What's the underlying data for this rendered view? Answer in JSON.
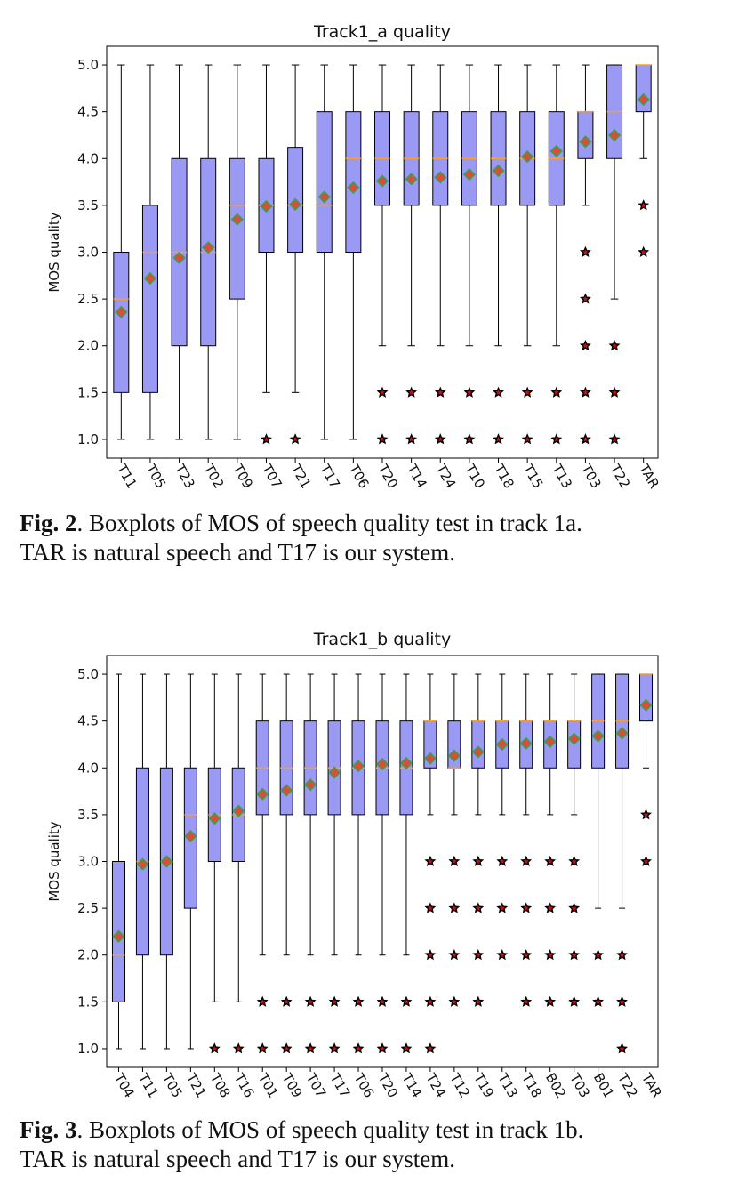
{
  "colors": {
    "box_fill": "#9a9af5",
    "median": "#f5a030",
    "mean_fill": "#e04a3a",
    "mean_edge": "#3aa04a",
    "flier_fill": "#c0101a",
    "flier_edge": "#000000"
  },
  "chart_data": [
    {
      "type": "boxplot",
      "title": "Track1_a quality",
      "xlabel": "",
      "ylabel": "MOS quality",
      "ylim": [
        0.8,
        5.2
      ],
      "yticks": [
        "1.0",
        "1.5",
        "2.0",
        "2.5",
        "3.0",
        "3.5",
        "4.0",
        "4.5",
        "5.0"
      ],
      "categories": [
        "T11",
        "T05",
        "T23",
        "T02",
        "T09",
        "T07",
        "T21",
        "T17",
        "T06",
        "T20",
        "T14",
        "T24",
        "T10",
        "T18",
        "T15",
        "T13",
        "T03",
        "T22",
        "TAR"
      ],
      "boxes": [
        {
          "min": 1.0,
          "q1": 1.5,
          "median": 2.5,
          "q3": 3.0,
          "max": 5.0,
          "mean": 2.36,
          "fliers": []
        },
        {
          "min": 1.0,
          "q1": 1.5,
          "median": 3.0,
          "q3": 3.5,
          "max": 5.0,
          "mean": 2.72,
          "fliers": []
        },
        {
          "min": 1.0,
          "q1": 2.0,
          "median": 3.0,
          "q3": 4.0,
          "max": 5.0,
          "mean": 2.94,
          "fliers": []
        },
        {
          "min": 1.0,
          "q1": 2.0,
          "median": 3.0,
          "q3": 4.0,
          "max": 5.0,
          "mean": 3.05,
          "fliers": []
        },
        {
          "min": 1.0,
          "q1": 2.5,
          "median": 3.5,
          "q3": 4.0,
          "max": 5.0,
          "mean": 3.35,
          "fliers": []
        },
        {
          "min": 1.5,
          "q1": 3.0,
          "median": 3.5,
          "q3": 4.0,
          "max": 5.0,
          "mean": 3.49,
          "fliers": [
            1.0
          ]
        },
        {
          "min": 1.5,
          "q1": 3.0,
          "median": 3.5,
          "q3": 4.12,
          "max": 5.0,
          "mean": 3.51,
          "fliers": [
            1.0
          ]
        },
        {
          "min": 1.0,
          "q1": 3.0,
          "median": 3.5,
          "q3": 4.5,
          "max": 5.0,
          "mean": 3.59,
          "fliers": []
        },
        {
          "min": 1.0,
          "q1": 3.0,
          "median": 4.0,
          "q3": 4.5,
          "max": 5.0,
          "mean": 3.69,
          "fliers": []
        },
        {
          "min": 2.0,
          "q1": 3.5,
          "median": 4.0,
          "q3": 4.5,
          "max": 5.0,
          "mean": 3.76,
          "fliers": [
            1.5,
            1.0
          ]
        },
        {
          "min": 2.0,
          "q1": 3.5,
          "median": 4.0,
          "q3": 4.5,
          "max": 5.0,
          "mean": 3.78,
          "fliers": [
            1.5,
            1.0
          ]
        },
        {
          "min": 2.0,
          "q1": 3.5,
          "median": 4.0,
          "q3": 4.5,
          "max": 5.0,
          "mean": 3.8,
          "fliers": [
            1.5,
            1.0
          ]
        },
        {
          "min": 2.0,
          "q1": 3.5,
          "median": 4.0,
          "q3": 4.5,
          "max": 5.0,
          "mean": 3.83,
          "fliers": [
            1.5,
            1.0
          ]
        },
        {
          "min": 2.0,
          "q1": 3.5,
          "median": 4.0,
          "q3": 4.5,
          "max": 5.0,
          "mean": 3.87,
          "fliers": [
            1.5,
            1.0
          ]
        },
        {
          "min": 2.0,
          "q1": 3.5,
          "median": 4.0,
          "q3": 4.5,
          "max": 5.0,
          "mean": 4.02,
          "fliers": [
            1.5,
            1.0
          ]
        },
        {
          "min": 2.0,
          "q1": 3.5,
          "median": 4.0,
          "q3": 4.5,
          "max": 5.0,
          "mean": 4.08,
          "fliers": [
            1.5,
            1.0
          ]
        },
        {
          "min": 3.5,
          "q1": 4.0,
          "median": 4.5,
          "q3": 4.5,
          "max": 5.0,
          "mean": 4.18,
          "fliers": [
            3.0,
            2.5,
            2.0,
            1.5,
            1.0
          ]
        },
        {
          "min": 2.5,
          "q1": 4.0,
          "median": 4.5,
          "q3": 5.0,
          "max": 5.0,
          "mean": 4.25,
          "fliers": [
            2.0,
            1.5,
            1.0
          ]
        },
        {
          "min": 4.0,
          "q1": 4.5,
          "median": 5.0,
          "q3": 5.0,
          "max": 5.0,
          "mean": 4.63,
          "fliers": [
            3.5,
            3.0
          ]
        }
      ]
    },
    {
      "type": "boxplot",
      "title": "Track1_b quality",
      "xlabel": "",
      "ylabel": "MOS quality",
      "ylim": [
        0.8,
        5.2
      ],
      "yticks": [
        "1.0",
        "1.5",
        "2.0",
        "2.5",
        "3.0",
        "3.5",
        "4.0",
        "4.5",
        "5.0"
      ],
      "categories": [
        "T04",
        "T11",
        "T05",
        "T21",
        "T08",
        "T16",
        "T01",
        "T09",
        "T07",
        "T17",
        "T06",
        "T20",
        "T14",
        "T24",
        "T12",
        "T19",
        "T13",
        "T18",
        "B02",
        "T03",
        "B01",
        "T22",
        "TAR"
      ],
      "boxes": [
        {
          "min": 1.0,
          "q1": 1.5,
          "median": 2.0,
          "q3": 3.0,
          "max": 5.0,
          "mean": 2.2,
          "fliers": []
        },
        {
          "min": 1.0,
          "q1": 2.0,
          "median": 3.0,
          "q3": 4.0,
          "max": 5.0,
          "mean": 2.97,
          "fliers": []
        },
        {
          "min": 1.0,
          "q1": 2.0,
          "median": 3.0,
          "q3": 4.0,
          "max": 5.0,
          "mean": 3.0,
          "fliers": []
        },
        {
          "min": 1.0,
          "q1": 2.5,
          "median": 3.5,
          "q3": 4.0,
          "max": 5.0,
          "mean": 3.27,
          "fliers": []
        },
        {
          "min": 1.5,
          "q1": 3.0,
          "median": 3.5,
          "q3": 4.0,
          "max": 5.0,
          "mean": 3.46,
          "fliers": [
            1.0
          ]
        },
        {
          "min": 1.5,
          "q1": 3.0,
          "median": 3.5,
          "q3": 4.0,
          "max": 5.0,
          "mean": 3.54,
          "fliers": [
            1.0
          ]
        },
        {
          "min": 2.0,
          "q1": 3.5,
          "median": 4.0,
          "q3": 4.5,
          "max": 5.0,
          "mean": 3.72,
          "fliers": [
            1.5,
            1.0
          ]
        },
        {
          "min": 2.0,
          "q1": 3.5,
          "median": 4.0,
          "q3": 4.5,
          "max": 5.0,
          "mean": 3.76,
          "fliers": [
            1.5,
            1.0
          ]
        },
        {
          "min": 2.0,
          "q1": 3.5,
          "median": 4.0,
          "q3": 4.5,
          "max": 5.0,
          "mean": 3.82,
          "fliers": [
            1.5,
            1.0
          ]
        },
        {
          "min": 2.0,
          "q1": 3.5,
          "median": 4.0,
          "q3": 4.5,
          "max": 5.0,
          "mean": 3.95,
          "fliers": [
            1.5,
            1.0
          ]
        },
        {
          "min": 2.0,
          "q1": 3.5,
          "median": 4.0,
          "q3": 4.5,
          "max": 5.0,
          "mean": 4.02,
          "fliers": [
            1.5,
            1.0
          ]
        },
        {
          "min": 2.0,
          "q1": 3.5,
          "median": 4.0,
          "q3": 4.5,
          "max": 5.0,
          "mean": 4.04,
          "fliers": [
            1.5,
            1.0
          ]
        },
        {
          "min": 2.0,
          "q1": 3.5,
          "median": 4.0,
          "q3": 4.5,
          "max": 5.0,
          "mean": 4.05,
          "fliers": [
            1.5,
            1.0
          ]
        },
        {
          "min": 3.5,
          "q1": 4.0,
          "median": 4.5,
          "q3": 4.5,
          "max": 5.0,
          "mean": 4.1,
          "fliers": [
            3.0,
            2.5,
            2.0,
            1.5,
            1.0
          ]
        },
        {
          "min": 3.5,
          "q1": 4.0,
          "median": 4.0,
          "q3": 4.5,
          "max": 5.0,
          "mean": 4.13,
          "fliers": [
            3.0,
            2.5,
            2.0,
            1.5
          ]
        },
        {
          "min": 3.5,
          "q1": 4.0,
          "median": 4.5,
          "q3": 4.5,
          "max": 5.0,
          "mean": 4.17,
          "fliers": [
            3.0,
            2.5,
            2.0,
            1.5
          ]
        },
        {
          "min": 3.5,
          "q1": 4.0,
          "median": 4.5,
          "q3": 4.5,
          "max": 5.0,
          "mean": 4.25,
          "fliers": [
            3.0,
            2.5,
            2.0
          ]
        },
        {
          "min": 3.5,
          "q1": 4.0,
          "median": 4.5,
          "q3": 4.5,
          "max": 5.0,
          "mean": 4.26,
          "fliers": [
            3.0,
            2.5,
            2.0,
            1.5
          ]
        },
        {
          "min": 3.5,
          "q1": 4.0,
          "median": 4.5,
          "q3": 4.5,
          "max": 5.0,
          "mean": 4.28,
          "fliers": [
            3.0,
            2.5,
            2.0,
            1.5
          ]
        },
        {
          "min": 3.5,
          "q1": 4.0,
          "median": 4.5,
          "q3": 4.5,
          "max": 5.0,
          "mean": 4.31,
          "fliers": [
            3.0,
            2.5,
            2.0,
            1.5
          ]
        },
        {
          "min": 2.5,
          "q1": 4.0,
          "median": 4.5,
          "q3": 5.0,
          "max": 5.0,
          "mean": 4.34,
          "fliers": [
            2.0,
            1.5
          ]
        },
        {
          "min": 2.5,
          "q1": 4.0,
          "median": 4.5,
          "q3": 5.0,
          "max": 5.0,
          "mean": 4.37,
          "fliers": [
            2.0,
            1.5,
            1.0
          ]
        },
        {
          "min": 4.0,
          "q1": 4.5,
          "median": 5.0,
          "q3": 5.0,
          "max": 5.0,
          "mean": 4.67,
          "fliers": [
            3.5,
            3.0
          ]
        }
      ]
    }
  ],
  "captions": {
    "fig2": {
      "label": "Fig. 2",
      "text": ".  Boxplots of MOS of speech quality test in track 1a.",
      "line2": "TAR is natural speech and T17 is our system."
    },
    "fig3": {
      "label": "Fig. 3",
      "text": ".  Boxplots of MOS of speech quality test in track 1b.",
      "line2": "TAR is natural speech and T17 is our system."
    }
  }
}
